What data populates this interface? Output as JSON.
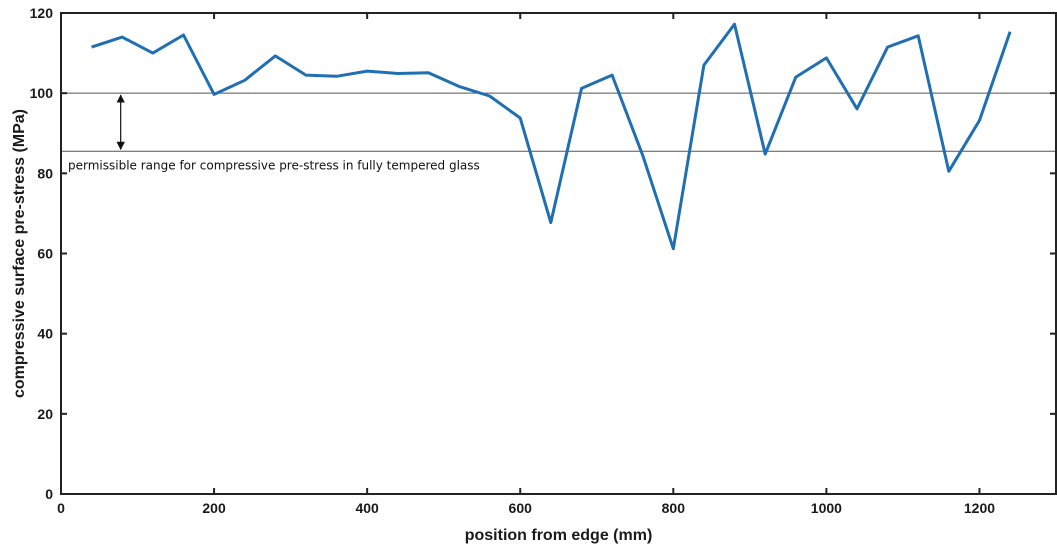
{
  "chart_data": {
    "type": "line",
    "xlabel": "position from edge (mm)",
    "ylabel": "compressive surface pre-stress (MPa)",
    "xlim": [
      0,
      1300
    ],
    "ylim": [
      0,
      120
    ],
    "x_ticks": [
      0,
      200,
      400,
      600,
      800,
      1000,
      1200
    ],
    "y_ticks": [
      0,
      20,
      40,
      60,
      80,
      100,
      120
    ],
    "grid": false,
    "series": [
      {
        "color": "#1f6fb2",
        "x": [
          40,
          80,
          120,
          160,
          200,
          240,
          280,
          320,
          360,
          400,
          440,
          480,
          520,
          560,
          600,
          640,
          680,
          720,
          760,
          800,
          840,
          880,
          920,
          960,
          1000,
          1040,
          1080,
          1120,
          1160,
          1200,
          1240
        ],
        "y": [
          111.5,
          114,
          110,
          114.5,
          99.7,
          103.2,
          109.3,
          104.5,
          104.2,
          105.5,
          104.9,
          105.1,
          101.7,
          99.3,
          93.8,
          67.7,
          101.2,
          104.5,
          84.5,
          61.2,
          107,
          117.2,
          84.8,
          104,
          108.8,
          96.1,
          111.5,
          114.3,
          80.5,
          93.2,
          115.3
        ]
      }
    ],
    "reference_lines": [
      100,
      85.5
    ],
    "annotation": {
      "text": "permissible range for compressive pre-stress in fully tempered glass",
      "arrow_x": 78,
      "arrow_from": 100,
      "arrow_to": 85.5
    }
  }
}
